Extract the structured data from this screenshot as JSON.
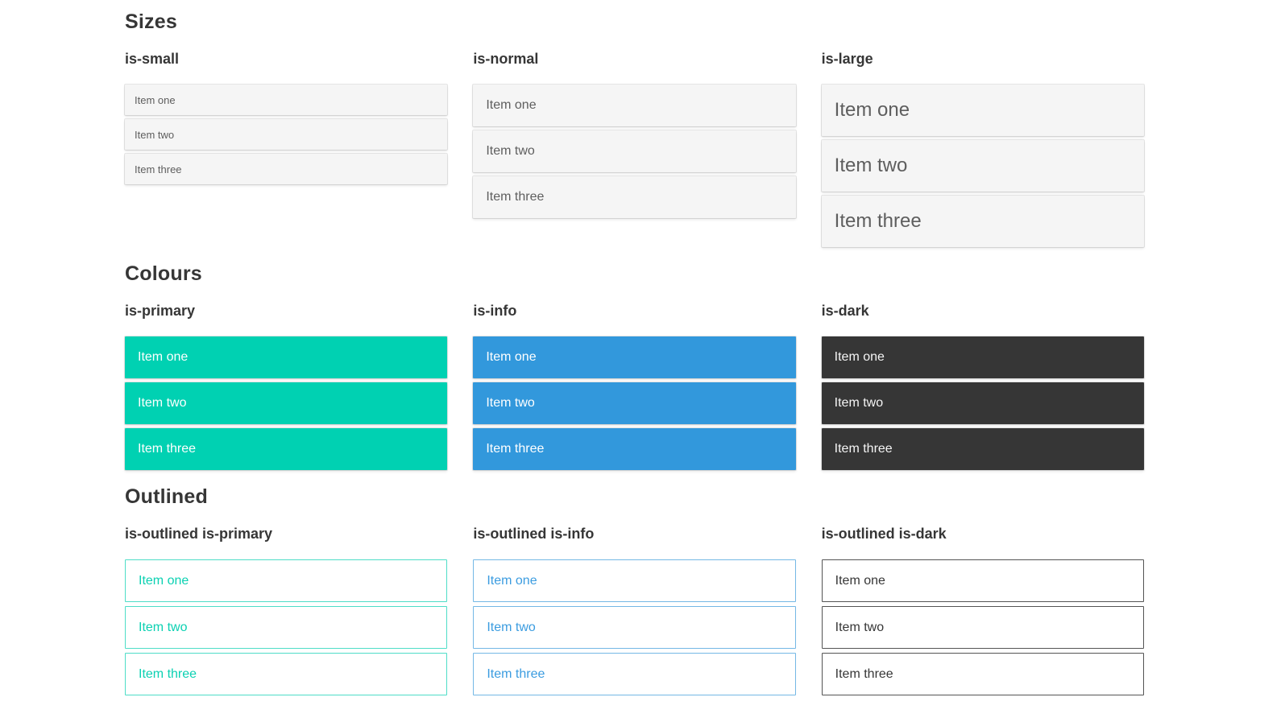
{
  "sections": [
    {
      "title": "Sizes",
      "groups": [
        {
          "label": "is-small",
          "items": [
            "Item one",
            "Item two",
            "Item three"
          ]
        },
        {
          "label": "is-normal",
          "items": [
            "Item one",
            "Item two",
            "Item three"
          ]
        },
        {
          "label": "is-large",
          "items": [
            "Item one",
            "Item two",
            "Item three"
          ]
        }
      ]
    },
    {
      "title": "Colours",
      "groups": [
        {
          "label": "is-primary",
          "items": [
            "Item one",
            "Item two",
            "Item three"
          ]
        },
        {
          "label": "is-info",
          "items": [
            "Item one",
            "Item two",
            "Item three"
          ]
        },
        {
          "label": "is-dark",
          "items": [
            "Item one",
            "Item two",
            "Item three"
          ]
        }
      ]
    },
    {
      "title": "Outlined",
      "groups": [
        {
          "label": "is-outlined is-primary",
          "items": [
            "Item one",
            "Item two",
            "Item three"
          ]
        },
        {
          "label": "is-outlined is-info",
          "items": [
            "Item one",
            "Item two",
            "Item three"
          ]
        },
        {
          "label": "is-outlined is-dark",
          "items": [
            "Item one",
            "Item two",
            "Item three"
          ]
        }
      ]
    }
  ],
  "colors": {
    "primary": "#00d1b2",
    "info": "#3298dc",
    "dark": "#363636",
    "item_background_default": "#f5f5f5",
    "heading_text": "#363636",
    "item_text_default": "#5e5e5e"
  }
}
